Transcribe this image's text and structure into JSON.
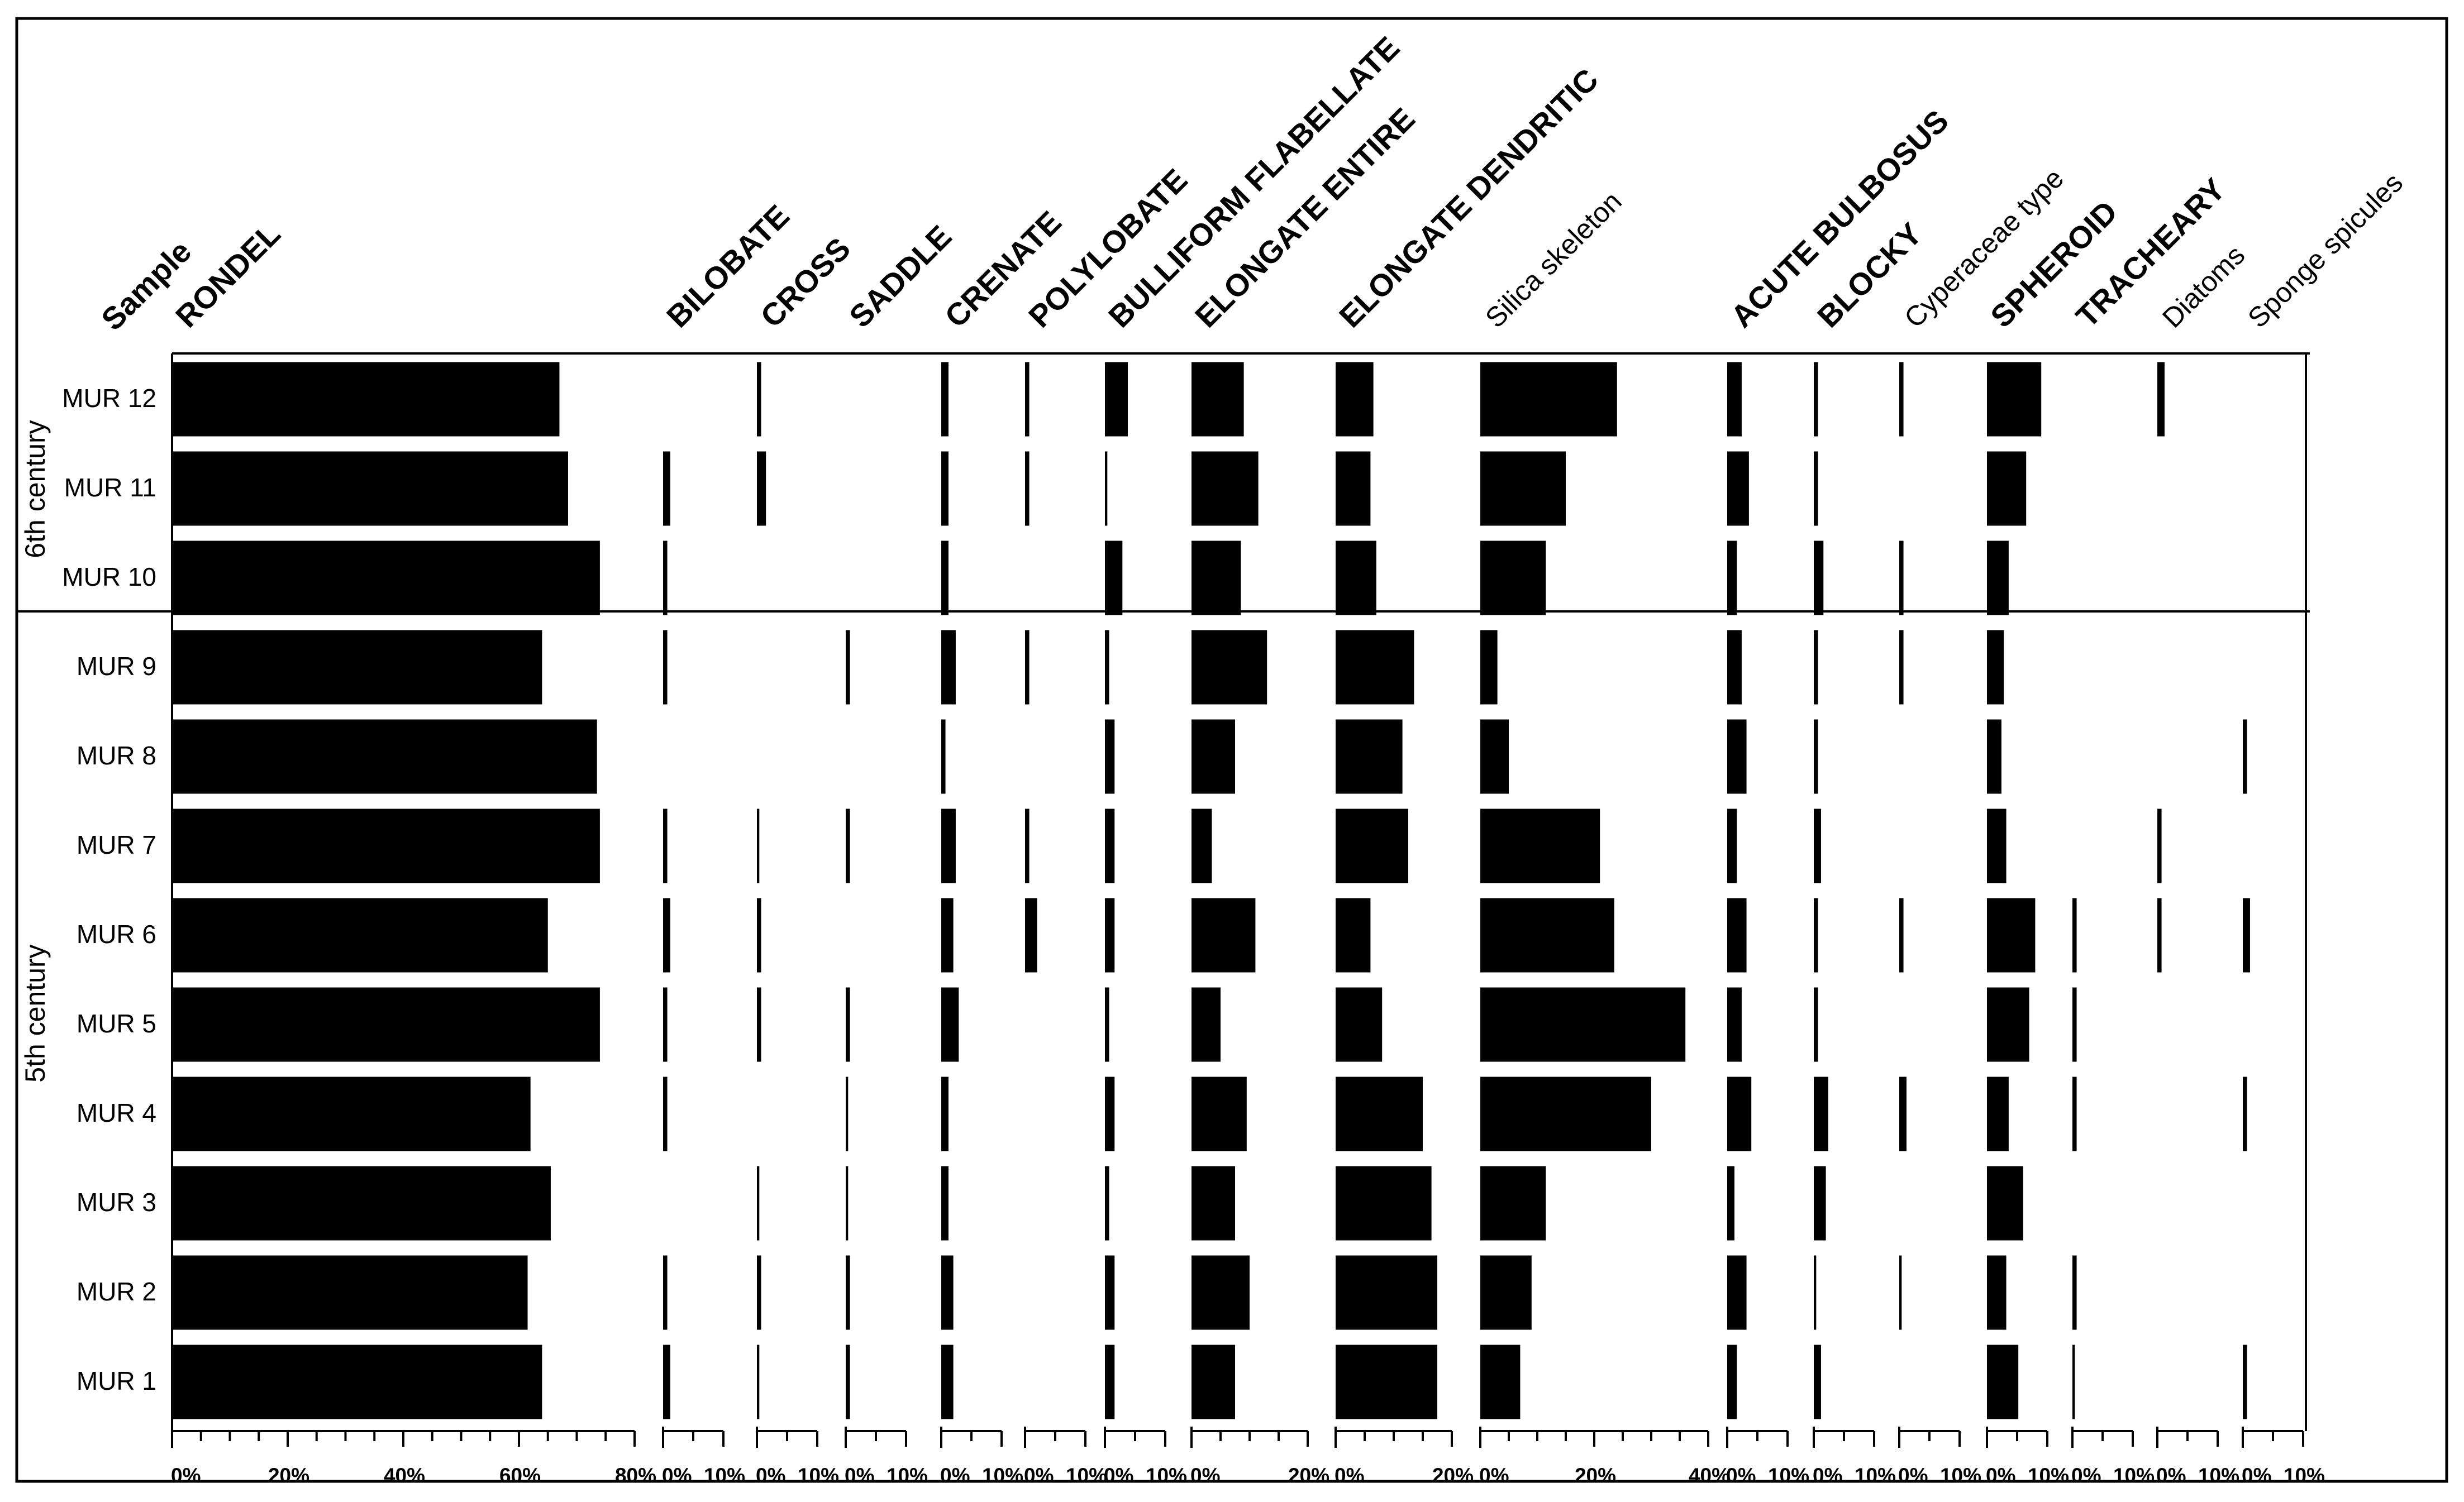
{
  "chart_data": {
    "type": "bar",
    "orientation": "horizontal",
    "title": "",
    "row_header": "Sample",
    "samples": [
      "MUR 12",
      "MUR 11",
      "MUR 10",
      "MUR 9",
      "MUR 8",
      "MUR 7",
      "MUR 6",
      "MUR 5",
      "MUR 4",
      "MUR 3",
      "MUR 2",
      "MUR 1"
    ],
    "periods": [
      {
        "label": "6th century",
        "samples": [
          "MUR 12",
          "MUR 11",
          "MUR 10"
        ]
      },
      {
        "label": "5th century",
        "samples": [
          "MUR 9",
          "MUR 8",
          "MUR 7",
          "MUR 6",
          "MUR 5",
          "MUR 4",
          "MUR 3",
          "MUR 2",
          "MUR 1"
        ]
      }
    ],
    "unit": "%",
    "series": [
      {
        "name": "RONDEL",
        "xlim": [
          0,
          80
        ],
        "tick_labels": [
          "0%",
          "20%",
          "40%",
          "60%",
          "80%"
        ],
        "values": [
          67,
          68.5,
          74,
          64,
          73.5,
          74,
          65,
          74,
          62,
          65.5,
          61.5,
          64
        ]
      },
      {
        "name": "BILOBATE",
        "xlim": [
          0,
          10
        ],
        "tick_labels": [
          "0%",
          "10%"
        ],
        "values": [
          0,
          1.2,
          0.7,
          0.7,
          0,
          0.7,
          1.2,
          0.7,
          0.7,
          0,
          0.7,
          1.2
        ]
      },
      {
        "name": "CROSS",
        "xlim": [
          0,
          10
        ],
        "tick_labels": [
          "0%",
          "10%"
        ],
        "values": [
          0.7,
          1.5,
          0,
          0,
          0,
          0.4,
          0.7,
          0.7,
          0,
          0.4,
          0.7,
          0.4
        ]
      },
      {
        "name": "SADDLE",
        "xlim": [
          0,
          10
        ],
        "tick_labels": [
          "0%",
          "10%"
        ],
        "values": [
          0,
          0,
          0,
          0.7,
          0,
          0.7,
          0,
          0.7,
          0.4,
          0.4,
          0.7,
          0.7
        ]
      },
      {
        "name": "CRENATE",
        "xlim": [
          0,
          10
        ],
        "tick_labels": [
          "0%",
          "10%"
        ],
        "values": [
          1.2,
          1.2,
          1.2,
          2.4,
          0.7,
          2.4,
          2.0,
          2.9,
          1.2,
          1.2,
          2.0,
          2.0
        ]
      },
      {
        "name": "POLYLOBATE",
        "xlim": [
          0,
          10
        ],
        "tick_labels": [
          "0%",
          "10%"
        ],
        "values": [
          0.7,
          0.7,
          0,
          0.7,
          0,
          0.7,
          2.0,
          0,
          0,
          0,
          0,
          0
        ]
      },
      {
        "name": "BULLIFORM FLABELLATE",
        "xlim": [
          0,
          10
        ],
        "tick_labels": [
          "0%",
          "10%"
        ],
        "values": [
          3.8,
          0.4,
          2.9,
          0.7,
          1.6,
          1.6,
          1.6,
          0.7,
          1.6,
          0.7,
          1.6,
          1.6
        ]
      },
      {
        "name": "ELONGATE ENTIRE",
        "xlim": [
          0,
          20
        ],
        "tick_labels": [
          "0%",
          "20%"
        ],
        "values": [
          9,
          11.5,
          8.5,
          13,
          7.5,
          3.5,
          11,
          5,
          9.5,
          7.5,
          10,
          7.5
        ]
      },
      {
        "name": "ELONGATE DENDRITIC",
        "xlim": [
          0,
          20
        ],
        "tick_labels": [
          "0%",
          "20%"
        ],
        "values": [
          6.5,
          6,
          7,
          13.5,
          11.5,
          12.5,
          6,
          8,
          15,
          16.5,
          17.5,
          17.5
        ]
      },
      {
        "name": "Silica skeleton",
        "xlim": [
          0,
          40
        ],
        "tick_labels": [
          "0%",
          "20%",
          "40%"
        ],
        "values": [
          24,
          15,
          11.5,
          3,
          5,
          21,
          23.5,
          36,
          30,
          11.5,
          9,
          7
        ]
      },
      {
        "name": "ACUTE BULBOSUS",
        "xlim": [
          0,
          10
        ],
        "tick_labels": [
          "0%",
          "10%"
        ],
        "values": [
          2.4,
          3.6,
          1.6,
          2.4,
          3.2,
          1.6,
          3.2,
          2.4,
          4.0,
          1.2,
          3.2,
          1.6
        ]
      },
      {
        "name": "BLOCKY",
        "xlim": [
          0,
          10
        ],
        "tick_labels": [
          "0%",
          "10%"
        ],
        "values": [
          0.7,
          0.7,
          1.6,
          0.7,
          0.7,
          1.2,
          0.7,
          0.7,
          2.4,
          2.0,
          0.4,
          1.2
        ]
      },
      {
        "name": "Cyperaceae  type",
        "xlim": [
          0,
          10
        ],
        "tick_labels": [
          "0%",
          "10%"
        ],
        "values": [
          0.7,
          0,
          0.7,
          0.7,
          0,
          0,
          0.7,
          0,
          1.2,
          0,
          0.4,
          0
        ]
      },
      {
        "name": "SPHEROID",
        "xlim": [
          0,
          10
        ],
        "tick_labels": [
          "0%",
          "10%"
        ],
        "values": [
          9,
          6.5,
          3.6,
          2.8,
          2.4,
          3.2,
          8,
          7,
          3.6,
          6,
          3.2,
          5.2
        ]
      },
      {
        "name": "TRACHEARY",
        "xlim": [
          0,
          10
        ],
        "tick_labels": [
          "0%",
          "10%"
        ],
        "values": [
          0,
          0,
          0,
          0,
          0,
          0,
          0.7,
          0.7,
          0.7,
          0,
          0.7,
          0.4
        ]
      },
      {
        "name": "Diatoms",
        "xlim": [
          0,
          10
        ],
        "tick_labels": [
          "0%",
          "10%"
        ],
        "values": [
          1.2,
          0,
          0,
          0,
          0,
          0.7,
          0.7,
          0,
          0,
          0,
          0,
          0
        ]
      },
      {
        "name": "Sponge spicules",
        "xlim": [
          0,
          10
        ],
        "tick_labels": [
          "0%",
          "10%"
        ],
        "values": [
          0,
          0,
          0,
          0,
          0.7,
          0,
          1.2,
          0,
          0.7,
          0,
          0,
          0.7
        ]
      }
    ]
  }
}
